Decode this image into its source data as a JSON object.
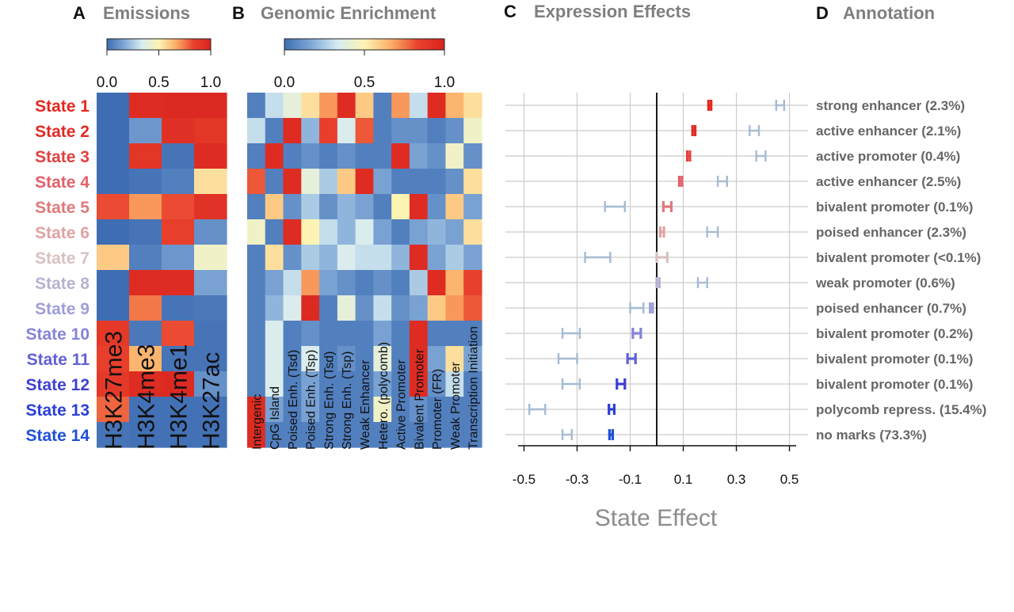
{
  "panels": {
    "a": {
      "letter": "A",
      "title": "Emissions"
    },
    "b": {
      "letter": "B",
      "title": "Genomic Enrichment"
    },
    "c": {
      "letter": "C",
      "title": "Expression Effects"
    },
    "d": {
      "letter": "D",
      "title": "Annotation"
    }
  },
  "colorbar_ticks": [
    "0.0",
    "0.5",
    "1.0"
  ],
  "colors": {
    "scale": [
      "#3f6db3",
      "#7fa8d6",
      "#d6ebf2",
      "#fdf4b4",
      "#fcae66",
      "#e8422d",
      "#d9231f"
    ],
    "grid": "#cccccc",
    "ci_light": "#a4bbd3",
    "zero_line": "#000000"
  },
  "states": [
    {
      "label": "State 1",
      "color": "#e8271f"
    },
    {
      "label": "State 2",
      "color": "#e02a24"
    },
    {
      "label": "State 3",
      "color": "#e3403f"
    },
    {
      "label": "State 4",
      "color": "#e4606a"
    },
    {
      "label": "State 5",
      "color": "#e0797b"
    },
    {
      "label": "State 6",
      "color": "#e0a2a3"
    },
    {
      "label": "State 7",
      "color": "#d9c1c1"
    },
    {
      "label": "State 8",
      "color": "#b7b2d1"
    },
    {
      "label": "State 9",
      "color": "#9f9ed8"
    },
    {
      "label": "State 10",
      "color": "#8484d9"
    },
    {
      "label": "State 11",
      "color": "#6060d4"
    },
    {
      "label": "State 12",
      "color": "#3f3fd0"
    },
    {
      "label": "State 13",
      "color": "#2b3fd6"
    },
    {
      "label": "State 14",
      "color": "#1f4fd9"
    }
  ],
  "chart_data": [
    {
      "type": "heatmap",
      "title": "Emissions",
      "columns": [
        "H3K27me3",
        "H3K4me3",
        "H3K4me1",
        "H3K27ac"
      ],
      "rows": [
        "State 1",
        "State 2",
        "State 3",
        "State 4",
        "State 5",
        "State 6",
        "State 7",
        "State 8",
        "State 9",
        "State 10",
        "State 11",
        "State 12",
        "State 13",
        "State 14"
      ],
      "range": [
        0,
        1
      ],
      "values": [
        [
          0.0,
          0.95,
          0.97,
          0.97
        ],
        [
          0.0,
          0.12,
          0.93,
          0.9
        ],
        [
          0.0,
          0.9,
          0.02,
          0.95
        ],
        [
          0.0,
          0.02,
          0.05,
          0.55
        ],
        [
          0.82,
          0.7,
          0.82,
          0.92
        ],
        [
          0.0,
          0.02,
          0.85,
          0.1
        ],
        [
          0.6,
          0.05,
          0.12,
          0.45
        ],
        [
          0.0,
          0.95,
          0.95,
          0.15
        ],
        [
          0.0,
          0.75,
          0.02,
          0.03
        ],
        [
          0.88,
          0.03,
          0.82,
          0.02
        ],
        [
          0.85,
          0.65,
          0.02,
          0.02
        ],
        [
          0.88,
          0.95,
          0.97,
          0.1
        ],
        [
          0.78,
          0.01,
          0.01,
          0.01
        ],
        [
          0.02,
          0.01,
          0.01,
          0.01
        ]
      ]
    },
    {
      "type": "heatmap",
      "title": "Genomic Enrichment",
      "columns": [
        "Intergenic",
        "CpG Island",
        "Poised Enh. (Tsd)",
        "Poised Enh. (Tsp)",
        "Strong Enh. (Tsd)",
        "Strong Enh. (Tsp)",
        "Weak Enhancer",
        "Hetero. (polycomb)",
        "Active Promoter",
        "Bivalent Promoter",
        "Promoter (FR)",
        "Weak Promoter",
        "Transcription Initiation"
      ],
      "rows": [
        "State 1",
        "State 2",
        "State 3",
        "State 4",
        "State 5",
        "State 6",
        "State 7",
        "State 8",
        "State 9",
        "State 10",
        "State 11",
        "State 12",
        "State 13",
        "State 14"
      ],
      "range": [
        0,
        1
      ],
      "values": [
        [
          0.05,
          0.3,
          0.4,
          0.55,
          0.7,
          0.95,
          0.6,
          0.05,
          0.7,
          0.3,
          0.95,
          0.65,
          0.55
        ],
        [
          0.3,
          0.05,
          0.95,
          0.2,
          0.85,
          0.35,
          0.8,
          0.05,
          0.1,
          0.1,
          0.05,
          0.1,
          0.45
        ],
        [
          0.05,
          0.95,
          0.05,
          0.1,
          0.05,
          0.1,
          0.05,
          0.05,
          0.95,
          0.15,
          0.1,
          0.45,
          0.1
        ],
        [
          0.8,
          0.05,
          0.95,
          0.4,
          0.25,
          0.6,
          0.95,
          0.15,
          0.05,
          0.05,
          0.05,
          0.1,
          0.55
        ],
        [
          0.05,
          0.6,
          0.1,
          0.25,
          0.1,
          0.2,
          0.15,
          0.05,
          0.5,
          0.95,
          0.1,
          0.6,
          0.15
        ],
        [
          0.45,
          0.05,
          0.95,
          0.5,
          0.3,
          0.2,
          0.35,
          0.15,
          0.05,
          0.15,
          0.2,
          0.15,
          0.55
        ],
        [
          0.05,
          0.55,
          0.1,
          0.25,
          0.2,
          0.35,
          0.3,
          0.3,
          0.2,
          0.95,
          0.15,
          0.25,
          0.15
        ],
        [
          0.05,
          0.15,
          0.3,
          0.7,
          0.15,
          0.1,
          0.05,
          0.1,
          0.05,
          0.25,
          0.95,
          0.65,
          0.85
        ],
        [
          0.05,
          0.2,
          0.35,
          0.97,
          0.05,
          0.4,
          0.1,
          0.3,
          0.1,
          0.15,
          0.6,
          0.7,
          0.8
        ],
        [
          0.05,
          0.35,
          0.05,
          0.1,
          0.05,
          0.05,
          0.05,
          0.15,
          0.05,
          0.95,
          0.05,
          0.05,
          0.05
        ],
        [
          0.05,
          0.35,
          0.05,
          0.35,
          0.05,
          0.1,
          0.05,
          0.4,
          0.05,
          0.95,
          0.15,
          0.55,
          0.15
        ],
        [
          0.05,
          0.35,
          0.05,
          0.15,
          0.05,
          0.05,
          0.05,
          0.15,
          0.05,
          0.95,
          0.1,
          0.3,
          0.05
        ],
        [
          0.95,
          0.15,
          0.05,
          0.15,
          0.05,
          0.05,
          0.05,
          0.45,
          0.05,
          0.1,
          0.05,
          0.05,
          0.05
        ],
        [
          0.95,
          0.05,
          0.05,
          0.05,
          0.05,
          0.05,
          0.05,
          0.05,
          0.05,
          0.05,
          0.05,
          0.05,
          0.05
        ]
      ]
    },
    {
      "type": "scatter",
      "title": "Expression Effects",
      "xlabel": "State Effect",
      "xlim": [
        -0.57,
        0.57
      ],
      "xticks": [
        "-0.5",
        "-0.3",
        "-0.1",
        "0.1",
        "0.3",
        "0.5"
      ],
      "xtick_values": [
        -0.5,
        -0.3,
        -0.1,
        0.1,
        0.3,
        0.5
      ],
      "grid": true,
      "series": [
        {
          "points": [
            {
              "state": "State 1",
              "effect": 0.2,
              "effect_lo": 0.195,
              "effect_hi": 0.205,
              "baseline_lo": 0.45,
              "baseline_hi": 0.48
            },
            {
              "state": "State 2",
              "effect": 0.14,
              "effect_lo": 0.135,
              "effect_hi": 0.145,
              "baseline_lo": 0.35,
              "baseline_hi": 0.385
            },
            {
              "state": "State 3",
              "effect": 0.12,
              "effect_lo": 0.115,
              "effect_hi": 0.125,
              "baseline_lo": 0.375,
              "baseline_hi": 0.41
            },
            {
              "state": "State 4",
              "effect": 0.09,
              "effect_lo": 0.085,
              "effect_hi": 0.095,
              "baseline_lo": 0.23,
              "baseline_hi": 0.265
            },
            {
              "state": "State 5",
              "effect": 0.04,
              "effect_lo": 0.025,
              "effect_hi": 0.055,
              "baseline_lo": -0.195,
              "baseline_hi": -0.12
            },
            {
              "state": "State 6",
              "effect": 0.02,
              "effect_lo": 0.013,
              "effect_hi": 0.027,
              "baseline_lo": 0.19,
              "baseline_hi": 0.23
            },
            {
              "state": "State 7",
              "effect": 0.02,
              "effect_lo": 0.0,
              "effect_hi": 0.04,
              "baseline_lo": -0.27,
              "baseline_hi": -0.175
            },
            {
              "state": "State 8",
              "effect": 0.005,
              "effect_lo": 0.0,
              "effect_hi": 0.01,
              "baseline_lo": 0.155,
              "baseline_hi": 0.19
            },
            {
              "state": "State 9",
              "effect": -0.02,
              "effect_lo": -0.025,
              "effect_hi": -0.015,
              "baseline_lo": -0.1,
              "baseline_hi": -0.05
            },
            {
              "state": "State 10",
              "effect": -0.075,
              "effect_lo": -0.09,
              "effect_hi": -0.06,
              "baseline_lo": -0.355,
              "baseline_hi": -0.29
            },
            {
              "state": "State 11",
              "effect": -0.095,
              "effect_lo": -0.11,
              "effect_hi": -0.08,
              "baseline_lo": -0.37,
              "baseline_hi": -0.3
            },
            {
              "state": "State 12",
              "effect": -0.135,
              "effect_lo": -0.15,
              "effect_hi": -0.12,
              "baseline_lo": -0.355,
              "baseline_hi": -0.29
            },
            {
              "state": "State 13",
              "effect": -0.17,
              "effect_lo": -0.18,
              "effect_hi": -0.16,
              "baseline_lo": -0.48,
              "baseline_hi": -0.42
            },
            {
              "state": "State 14",
              "effect": -0.172,
              "effect_lo": -0.178,
              "effect_hi": -0.166,
              "baseline_lo": -0.355,
              "baseline_hi": -0.32
            }
          ]
        }
      ]
    }
  ],
  "annotations": [
    "strong enhancer (2.3%)",
    "active enhancer (2.1%)",
    "active promoter (0.4%)",
    "active enhancer (2.5%)",
    "bivalent promoter (0.1%)",
    "poised enhancer (2.3%)",
    "bivalent promoter (<0.1%)",
    "weak promoter (0.6%)",
    "poised enhancer (0.7%)",
    "bivalent promoter (0.2%)",
    "bivalent promoter (0.1%)",
    "bivalent promoter (0.1%)",
    "polycomb repress. (15.4%)",
    "no marks (73.3%)"
  ]
}
